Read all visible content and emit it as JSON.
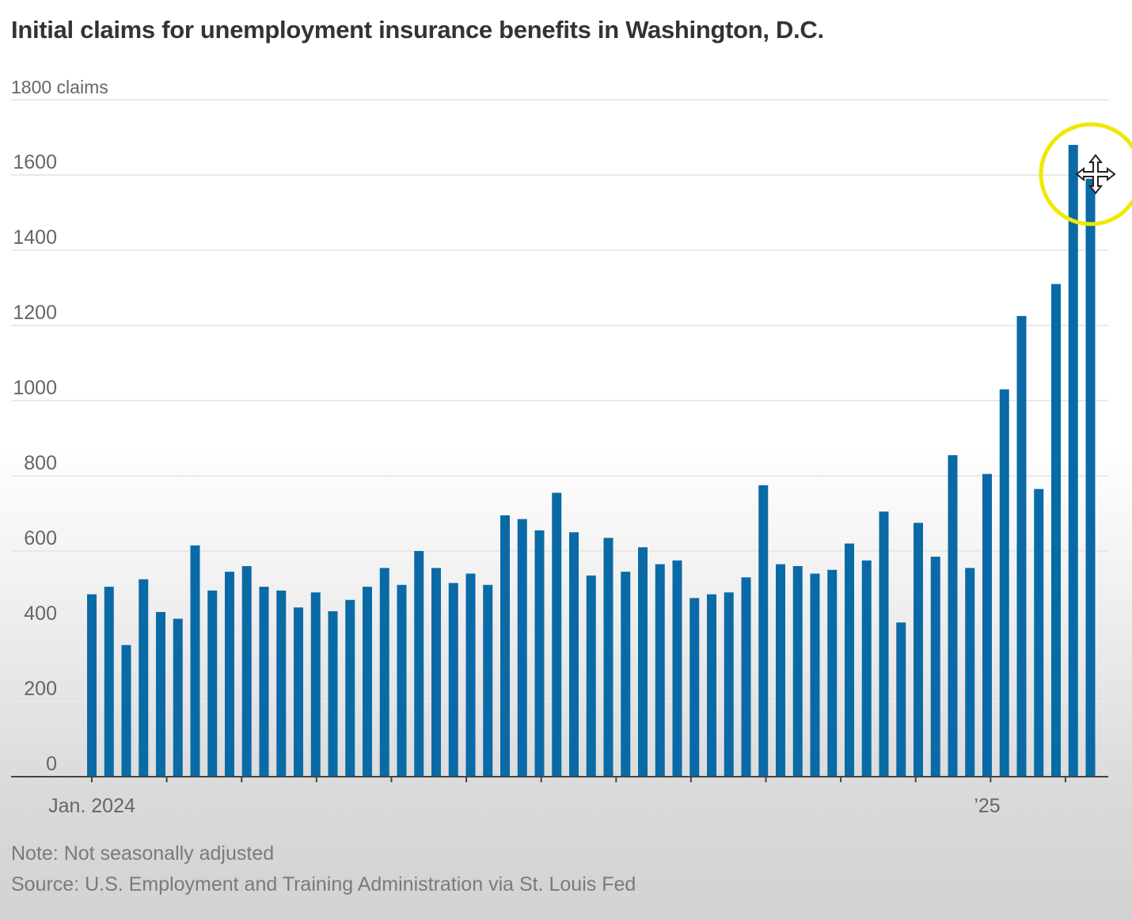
{
  "chart_data": {
    "type": "bar",
    "title": "Initial claims for unemployment insurance benefits in Washington, D.C.",
    "ylabel": "claims",
    "ylim": [
      0,
      1800
    ],
    "yticks": [
      0,
      200,
      400,
      600,
      800,
      1000,
      1200,
      1400,
      1600,
      1800
    ],
    "top_tick_label": "1800 claims",
    "x_tick_labels": [
      {
        "label": "Jan. 2024",
        "index": 0
      },
      {
        "label": "’25",
        "index": 52
      }
    ],
    "grid": true,
    "bar_color": "#0a6aa6",
    "x": [
      "2024-01-06",
      "2024-01-13",
      "2024-01-20",
      "2024-01-27",
      "2024-02-03",
      "2024-02-10",
      "2024-02-17",
      "2024-02-24",
      "2024-03-02",
      "2024-03-09",
      "2024-03-16",
      "2024-03-23",
      "2024-03-30",
      "2024-04-06",
      "2024-04-13",
      "2024-04-20",
      "2024-04-27",
      "2024-05-04",
      "2024-05-11",
      "2024-05-18",
      "2024-05-25",
      "2024-06-01",
      "2024-06-08",
      "2024-06-15",
      "2024-06-22",
      "2024-06-29",
      "2024-07-06",
      "2024-07-13",
      "2024-07-20",
      "2024-07-27",
      "2024-08-03",
      "2024-08-10",
      "2024-08-17",
      "2024-08-24",
      "2024-08-31",
      "2024-09-07",
      "2024-09-14",
      "2024-09-21",
      "2024-09-28",
      "2024-10-05",
      "2024-10-12",
      "2024-10-19",
      "2024-10-26",
      "2024-11-02",
      "2024-11-09",
      "2024-11-16",
      "2024-11-23",
      "2024-11-30",
      "2024-12-07",
      "2024-12-14",
      "2024-12-21",
      "2024-12-28",
      "2025-01-04",
      "2025-01-11",
      "2025-01-18",
      "2025-01-25",
      "2025-02-01",
      "2025-02-08",
      "2025-02-15",
      "2025-02-22"
    ],
    "values": [
      485,
      505,
      350,
      525,
      438,
      420,
      615,
      495,
      545,
      560,
      505,
      495,
      450,
      490,
      440,
      470,
      505,
      555,
      510,
      600,
      555,
      515,
      540,
      510,
      695,
      685,
      655,
      755,
      650,
      535,
      635,
      545,
      610,
      565,
      575,
      475,
      485,
      490,
      530,
      775,
      565,
      560,
      540,
      550,
      620,
      575,
      705,
      410,
      675,
      585,
      855,
      555,
      805,
      1030,
      1225,
      765,
      1310,
      1680,
      1590,
      0
    ]
  },
  "note": "Note: Not seasonally adjusted",
  "source": "Source: U.S. Employment and Training Administration via St. Louis Fed",
  "cursor_icon": "move-cursor-icon",
  "highlight_color": "#f0e800"
}
